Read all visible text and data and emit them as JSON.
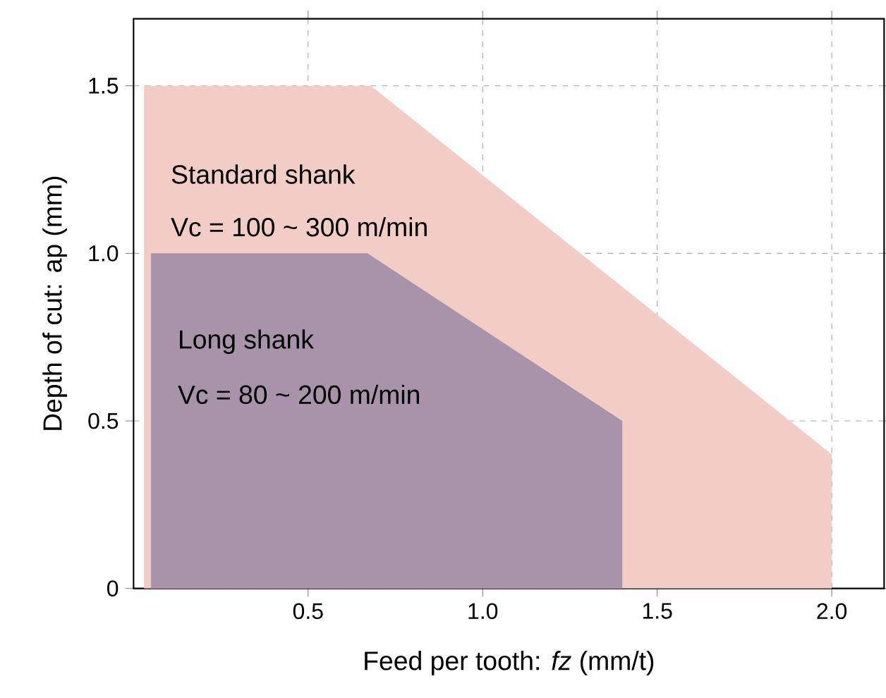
{
  "chart_data": {
    "type": "area",
    "xlabel": "Feed per tooth: *fz* (mm/t)",
    "ylabel": "Depth of cut: ap (mm)",
    "series": [
      {
        "color": "#f2cdc6",
        "x": [
          0.03,
          0.68,
          2.0
        ],
        "values": [
          1.5,
          1.5,
          0.4
        ]
      },
      {
        "color": "#a893ab",
        "x": [
          0.05,
          0.67,
          1.4
        ],
        "values": [
          1.0,
          1.0,
          0.5
        ]
      }
    ],
    "annotations": [
      "Standard shank",
      "Vc = 100 ~ 300 m/min",
      "Long shank",
      "Vc = 80 ~ 200 m/min"
    ],
    "xlim": [
      0,
      2.15
    ],
    "ylim": [
      0,
      1.7
    ],
    "xticks": [
      {
        "value": 0.5,
        "label": "0.5"
      },
      {
        "value": 1,
        "label": "1.0"
      },
      {
        "value": 1.5,
        "label": "1.5"
      },
      {
        "value": 2,
        "label": "2.0"
      }
    ],
    "yticks": [
      0,
      {
        "value": 0.5,
        "label": "0.5"
      },
      {
        "value": 1,
        "label": "1.0"
      },
      {
        "value": 1.5,
        "label": "1.5"
      }
    ],
    "grid": true
  }
}
